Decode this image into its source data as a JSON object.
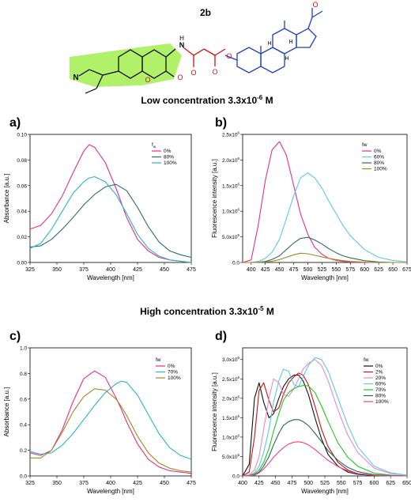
{
  "compound_label": "2b",
  "molecule": {
    "atoms": [
      "N",
      "O",
      "O",
      "N",
      "H",
      "O",
      "O",
      "O",
      "H",
      "H",
      "H",
      "O"
    ]
  },
  "section_low": "Low concentration 3.3x10",
  "section_low_exp": "-6",
  "section_low_unit": " M",
  "section_high": "High concentration 3.3x10",
  "section_high_exp": "-5",
  "section_high_unit": " M",
  "colors": {
    "highlight_green": "#a8f05a",
    "highlight_blue": "#5aa0ff",
    "red": "#d01010",
    "blue_bond": "#1f3fbf"
  },
  "chart_data": [
    {
      "panel": "a)",
      "type": "line",
      "xlabel": "Wavelength [nm]",
      "ylabel": "Absorbance [a.u.]",
      "xlim": [
        325,
        475
      ],
      "ylim": [
        0,
        0.1
      ],
      "xticks": [
        "325",
        "350",
        "375",
        "400",
        "425",
        "450",
        "475"
      ],
      "yticks": [
        "0.00",
        "0.02",
        "0.04",
        "0.06",
        "0.08",
        "0.10"
      ],
      "legend_title": "f",
      "legend_title_sub": "w",
      "legend_position": "top-right",
      "x": [
        325,
        335,
        345,
        355,
        365,
        375,
        380,
        385,
        395,
        405,
        415,
        425,
        435,
        445,
        455,
        465,
        475
      ],
      "series": [
        {
          "name": "0%",
          "color": "#e0318a",
          "values": [
            0.026,
            0.029,
            0.038,
            0.052,
            0.07,
            0.087,
            0.092,
            0.09,
            0.078,
            0.058,
            0.035,
            0.018,
            0.009,
            0.004,
            0.002,
            0.001,
            0.0
          ]
        },
        {
          "name": "80%",
          "color": "#2e6e63",
          "values": [
            0.012,
            0.013,
            0.018,
            0.026,
            0.035,
            0.045,
            0.049,
            0.053,
            0.059,
            0.061,
            0.056,
            0.043,
            0.028,
            0.016,
            0.009,
            0.006,
            0.004
          ]
        },
        {
          "name": "100%",
          "color": "#27b4c7",
          "values": [
            0.011,
            0.015,
            0.026,
            0.04,
            0.054,
            0.063,
            0.066,
            0.067,
            0.063,
            0.053,
            0.038,
            0.022,
            0.011,
            0.005,
            0.002,
            0.001,
            0.0
          ]
        }
      ]
    },
    {
      "panel": "b)",
      "type": "line",
      "xlabel": "Wavelength [nm]",
      "ylabel": "Fluorescence intensity [a.u.]",
      "xlim": [
        385,
        675
      ],
      "ylim": [
        0,
        2500000
      ],
      "xticks": [
        "400",
        "425",
        "450",
        "475",
        "500",
        "525",
        "550",
        "575",
        "600",
        "625",
        "650",
        "675"
      ],
      "yticks": [
        "0.0",
        "5.0x10",
        "1.0x10",
        "1.5x10",
        "2.0x10",
        "2.5x10"
      ],
      "ytick_exps": [
        "",
        "5",
        "6",
        "6",
        "6",
        "6"
      ],
      "legend_title": "fw",
      "legend_position": "top-right",
      "x": [
        385,
        400,
        412,
        425,
        437,
        450,
        462,
        475,
        487,
        500,
        512,
        525,
        537,
        550,
        562,
        575,
        600,
        625,
        650,
        675
      ],
      "series": [
        {
          "name": "0%",
          "color": "#e0318a",
          "values": [
            0,
            50000,
            700000,
            1600000,
            2200000,
            2360000,
            2100000,
            1500000,
            950000,
            550000,
            300000,
            160000,
            80000,
            40000,
            20000,
            10000,
            0,
            0,
            0,
            0
          ]
        },
        {
          "name": "60%",
          "color": "#5ec6e8",
          "values": [
            0,
            0,
            20000,
            80000,
            200000,
            450000,
            850000,
            1300000,
            1650000,
            1750000,
            1650000,
            1450000,
            1200000,
            950000,
            720000,
            520000,
            250000,
            100000,
            40000,
            10000
          ]
        },
        {
          "name": "80%",
          "color": "#2e6e63",
          "values": [
            0,
            0,
            5000,
            20000,
            60000,
            130000,
            250000,
            380000,
            470000,
            490000,
            440000,
            360000,
            270000,
            190000,
            130000,
            90000,
            35000,
            10000,
            0,
            0
          ]
        },
        {
          "name": "100%",
          "color": "#a08a1e",
          "values": [
            0,
            0,
            0,
            10000,
            25000,
            55000,
            100000,
            150000,
            180000,
            170000,
            140000,
            110000,
            80000,
            55000,
            35000,
            20000,
            8000,
            0,
            0,
            0
          ]
        }
      ]
    },
    {
      "panel": "c)",
      "type": "line",
      "xlabel": "Wavelength [nm]",
      "ylabel": "Absorbance [a.u.]",
      "xlim": [
        325,
        475
      ],
      "ylim": [
        0,
        1.0
      ],
      "xticks": [
        "325",
        "350",
        "375",
        "400",
        "425",
        "450",
        "475"
      ],
      "yticks": [
        "0.0",
        "0.2",
        "0.4",
        "0.6",
        "0.8",
        "1.0"
      ],
      "legend_title": "fw",
      "legend_position": "top-right",
      "x": [
        325,
        335,
        345,
        355,
        365,
        375,
        385,
        395,
        405,
        410,
        415,
        425,
        435,
        445,
        455,
        465,
        475
      ],
      "series": [
        {
          "name": "0%",
          "color": "#e0318a",
          "values": [
            0.18,
            0.16,
            0.2,
            0.36,
            0.58,
            0.76,
            0.82,
            0.77,
            0.61,
            0.52,
            0.42,
            0.25,
            0.13,
            0.07,
            0.04,
            0.03,
            0.02
          ]
        },
        {
          "name": "70%",
          "color": "#27b4c7",
          "values": [
            0.19,
            0.17,
            0.18,
            0.24,
            0.33,
            0.44,
            0.55,
            0.65,
            0.72,
            0.74,
            0.73,
            0.63,
            0.48,
            0.33,
            0.22,
            0.16,
            0.13
          ]
        },
        {
          "name": "100%",
          "color": "#a08a1e",
          "values": [
            0.14,
            0.14,
            0.2,
            0.34,
            0.5,
            0.62,
            0.68,
            0.67,
            0.6,
            0.54,
            0.47,
            0.31,
            0.18,
            0.1,
            0.06,
            0.04,
            0.03
          ]
        }
      ]
    },
    {
      "panel": "d)",
      "type": "line",
      "xlabel": "Wavelength [nm]",
      "ylabel": "Fluorescence intensity [a.u.]",
      "xlim": [
        400,
        650
      ],
      "ylim": [
        0,
        3300000
      ],
      "xticks": [
        "400",
        "425",
        "450",
        "475",
        "500",
        "525",
        "550",
        "575",
        "600",
        "625",
        "650"
      ],
      "yticks": [
        "0.0",
        "5.0x10",
        "1.0x10",
        "1.5x10",
        "2.0x10",
        "2.5x10",
        "3.0x10"
      ],
      "ytick_exps": [
        "",
        "5",
        "6",
        "6",
        "6",
        "6",
        "6"
      ],
      "legend_title": "fw",
      "legend_position": "top-right",
      "x": [
        400,
        410,
        418,
        425,
        432,
        440,
        447,
        455,
        462,
        470,
        478,
        485,
        492,
        500,
        510,
        520,
        530,
        545,
        560,
        575,
        600,
        625,
        650
      ],
      "series": [
        {
          "name": "0%",
          "color": "#111111",
          "values": [
            0,
            300000,
            2000000,
            2400000,
            1900000,
            1500000,
            1600000,
            2000000,
            2300000,
            2500000,
            2600000,
            2600000,
            2450000,
            2100000,
            1500000,
            950000,
            550000,
            250000,
            100000,
            40000,
            10000,
            0,
            0
          ]
        },
        {
          "name": "2%",
          "color": "#cc1111",
          "values": [
            0,
            100000,
            1000000,
            2200000,
            2400000,
            1950000,
            1650000,
            1750000,
            2100000,
            2400000,
            2550000,
            2650000,
            2600000,
            2350000,
            1800000,
            1200000,
            750000,
            350000,
            150000,
            60000,
            15000,
            0,
            0
          ]
        },
        {
          "name": "20%",
          "color": "#e48ad2",
          "values": [
            0,
            30000,
            150000,
            500000,
            1200000,
            2000000,
            2500000,
            2400000,
            2100000,
            2050000,
            2250000,
            2500000,
            2750000,
            2900000,
            3000000,
            2850000,
            2450000,
            1700000,
            1050000,
            600000,
            200000,
            60000,
            20000
          ]
        },
        {
          "name": "60%",
          "color": "#5ec6e8",
          "values": [
            0,
            20000,
            80000,
            250000,
            600000,
            1200000,
            1900000,
            2450000,
            2750000,
            2700000,
            2350000,
            2300000,
            2550000,
            2850000,
            3050000,
            3000000,
            2700000,
            2000000,
            1300000,
            750000,
            250000,
            80000,
            20000
          ]
        },
        {
          "name": "70%",
          "color": "#22c41e",
          "values": [
            0,
            10000,
            50000,
            150000,
            350000,
            700000,
            1150000,
            1600000,
            1950000,
            2150000,
            2250000,
            2300000,
            2330000,
            2320000,
            2150000,
            1800000,
            1400000,
            850000,
            480000,
            250000,
            70000,
            20000,
            0
          ]
        },
        {
          "name": "80%",
          "color": "#1e6b5e",
          "values": [
            0,
            5000,
            30000,
            100000,
            250000,
            500000,
            800000,
            1100000,
            1300000,
            1400000,
            1450000,
            1450000,
            1400000,
            1300000,
            1100000,
            880000,
            650000,
            400000,
            220000,
            110000,
            30000,
            10000,
            0
          ]
        },
        {
          "name": "100%",
          "color": "#f04080",
          "values": [
            0,
            5000,
            20000,
            80000,
            180000,
            330000,
            480000,
            620000,
            730000,
            820000,
            870000,
            880000,
            860000,
            800000,
            680000,
            540000,
            400000,
            240000,
            130000,
            60000,
            15000,
            0,
            0
          ]
        }
      ]
    }
  ]
}
